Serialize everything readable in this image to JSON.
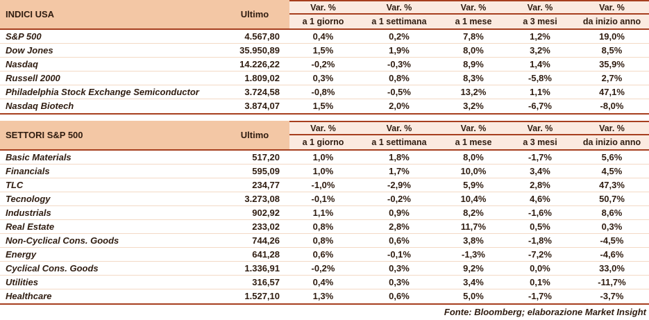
{
  "chart_data": [
    {
      "type": "table",
      "title": "INDICI USA",
      "header": {
        "ultimo": "Ultimo",
        "var_label": "Var. %",
        "periods": [
          "a 1 giorno",
          "a 1 settimana",
          "a 1 mese",
          "a 3 mesi",
          "da inizio anno"
        ]
      },
      "rows": [
        {
          "name": "S&P 500",
          "ultimo": "4.567,80",
          "vars": [
            "0,4%",
            "0,2%",
            "7,8%",
            "1,2%",
            "19,0%"
          ]
        },
        {
          "name": "Dow Jones",
          "ultimo": "35.950,89",
          "vars": [
            "1,5%",
            "1,9%",
            "8,0%",
            "3,2%",
            "8,5%"
          ]
        },
        {
          "name": "Nasdaq",
          "ultimo": "14.226,22",
          "vars": [
            "-0,2%",
            "-0,3%",
            "8,9%",
            "1,4%",
            "35,9%"
          ]
        },
        {
          "name": "Russell 2000",
          "ultimo": "1.809,02",
          "vars": [
            "0,3%",
            "0,8%",
            "8,3%",
            "-5,8%",
            "2,7%"
          ]
        },
        {
          "name": "Philadelphia Stock Exchange Semiconductor",
          "ultimo": "3.724,58",
          "vars": [
            "-0,8%",
            "-0,5%",
            "13,2%",
            "1,1%",
            "47,1%"
          ]
        },
        {
          "name": "Nasdaq Biotech",
          "ultimo": "3.874,07",
          "vars": [
            "1,5%",
            "2,0%",
            "3,2%",
            "-6,7%",
            "-8,0%"
          ]
        }
      ]
    },
    {
      "type": "table",
      "title": "SETTORI S&P 500",
      "header": {
        "ultimo": "Ultimo",
        "var_label": "Var. %",
        "periods": [
          "a 1 giorno",
          "a 1 settimana",
          "a 1 mese",
          "a 3 mesi",
          "da inizio anno"
        ]
      },
      "rows": [
        {
          "name": "Basic Materials",
          "ultimo": "517,20",
          "vars": [
            "1,0%",
            "1,8%",
            "8,0%",
            "-1,7%",
            "5,6%"
          ]
        },
        {
          "name": "Financials",
          "ultimo": "595,09",
          "vars": [
            "1,0%",
            "1,7%",
            "10,0%",
            "3,4%",
            "4,5%"
          ]
        },
        {
          "name": "TLC",
          "ultimo": "234,77",
          "vars": [
            "-1,0%",
            "-2,9%",
            "5,9%",
            "2,8%",
            "47,3%"
          ]
        },
        {
          "name": "Tecnology",
          "ultimo": "3.273,08",
          "vars": [
            "-0,1%",
            "-0,2%",
            "10,4%",
            "4,6%",
            "50,7%"
          ]
        },
        {
          "name": "Industrials",
          "ultimo": "902,92",
          "vars": [
            "1,1%",
            "0,9%",
            "8,2%",
            "-1,6%",
            "8,6%"
          ]
        },
        {
          "name": "Real Estate",
          "ultimo": "233,02",
          "vars": [
            "0,8%",
            "2,8%",
            "11,7%",
            "0,5%",
            "0,3%"
          ]
        },
        {
          "name": "Non-Cyclical Cons. Goods",
          "ultimo": "744,26",
          "vars": [
            "0,8%",
            "0,6%",
            "3,8%",
            "-1,8%",
            "-4,5%"
          ]
        },
        {
          "name": "Energy",
          "ultimo": "641,28",
          "vars": [
            "0,6%",
            "-0,1%",
            "-1,3%",
            "-7,2%",
            "-4,6%"
          ]
        },
        {
          "name": "Cyclical Cons. Goods",
          "ultimo": "1.336,91",
          "vars": [
            "-0,2%",
            "0,3%",
            "9,2%",
            "0,0%",
            "33,0%"
          ]
        },
        {
          "name": "Utilities",
          "ultimo": "316,57",
          "vars": [
            "0,4%",
            "0,3%",
            "3,4%",
            "0,1%",
            "-11,7%"
          ]
        },
        {
          "name": "Healthcare",
          "ultimo": "1.527,10",
          "vars": [
            "1,3%",
            "0,6%",
            "5,0%",
            "-1,7%",
            "-3,7%"
          ]
        }
      ]
    }
  ],
  "footer": "Fonte: Bloomberg; elaborazione Market Insight",
  "colors": {
    "header_peach": "#f3c7a5",
    "subheader_bg": "#fbeae0",
    "rule_red": "#a63e1e",
    "row_divider": "#f3d9c5",
    "text": "#2f1c10"
  }
}
